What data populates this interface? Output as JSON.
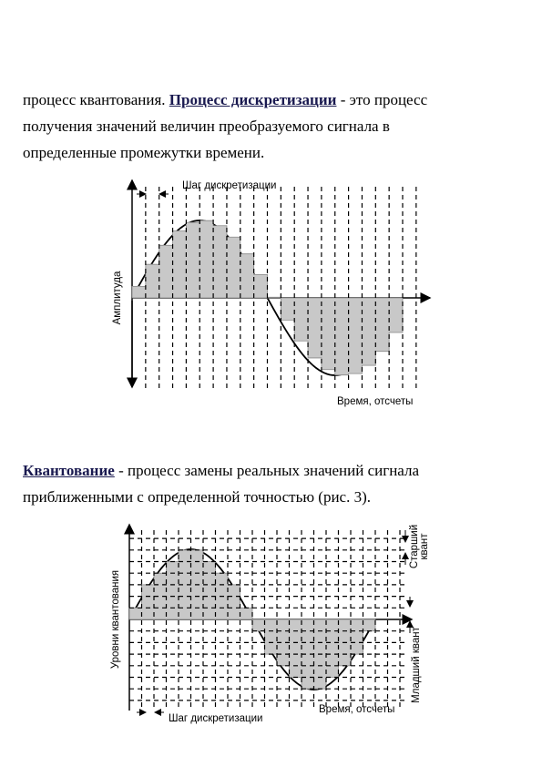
{
  "paragraph_1": {
    "lines": [
      [
        {
          "text": "процесс квантования. "
        },
        {
          "text": "Процесс дискретизации",
          "bold": true
        },
        {
          "text": " - это процесс"
        }
      ],
      [
        {
          "text": "получения значений величин преобразуемого сигнала в"
        }
      ],
      [
        {
          "text": "определенные промежутки времени."
        }
      ]
    ]
  },
  "figure_1": {
    "step_label": "Шаг дискретизации",
    "y_label": "Амплитуда",
    "x_label": "Время, отсчеты"
  },
  "paragraph_2": {
    "lines": [
      [
        {
          "text": "Квантование",
          "bold": true
        },
        {
          "text": " - процесс замены реальных значений сигнала"
        }
      ],
      [
        {
          "text": "приближенными с определенной точностью (рис. 3)."
        }
      ]
    ]
  },
  "figure_2": {
    "y_label": "Уровни квантования",
    "step_label": "Шаг дискретизации",
    "x_label": "Время, отсчеты",
    "upper_label": [
      "Старший",
      "квант"
    ],
    "lower_label": "Младший квант"
  }
}
